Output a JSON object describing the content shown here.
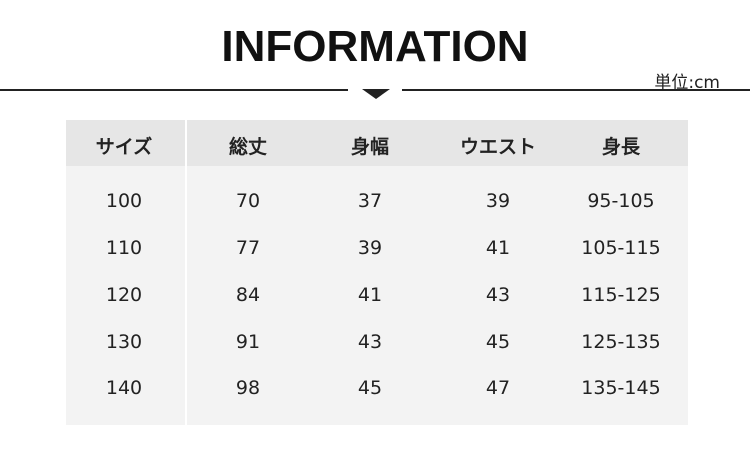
{
  "title": "INFORMATION",
  "unit": "単位:cm",
  "headers": [
    "サイズ",
    "総丈",
    "身幅",
    "ウエスト",
    "身長"
  ],
  "rows": [
    [
      "100",
      "70",
      "37",
      "39",
      "95-105"
    ],
    [
      "110",
      "77",
      "39",
      "41",
      "105-115"
    ],
    [
      "120",
      "84",
      "41",
      "43",
      "115-125"
    ],
    [
      "130",
      "91",
      "43",
      "45",
      "125-135"
    ],
    [
      "140",
      "98",
      "45",
      "47",
      "135-145"
    ]
  ]
}
